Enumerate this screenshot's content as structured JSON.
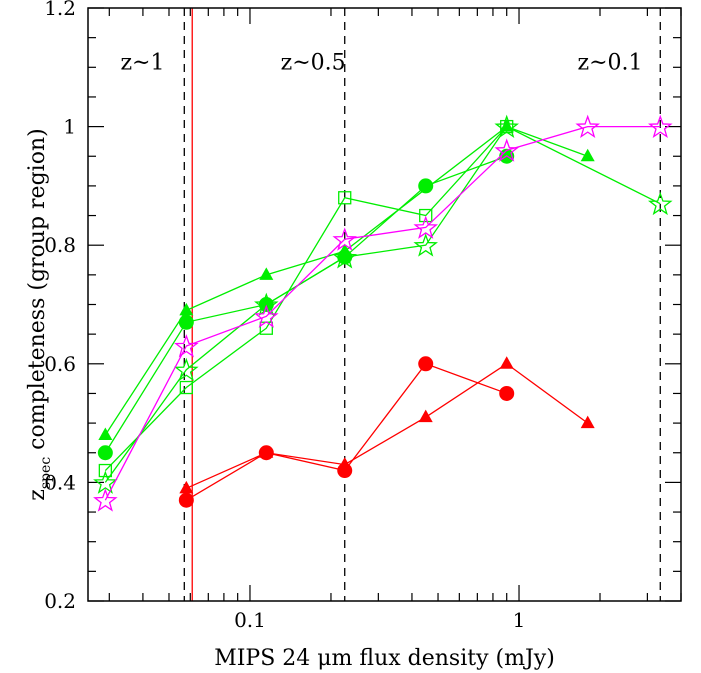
{
  "chart_data": {
    "type": "line",
    "xlabel": "MIPS 24 μm flux density (mJy)",
    "ylabel_main": "z",
    "ylabel_sub": "spec",
    "ylabel_rest": " completeness (group region)",
    "xscale": "log",
    "xlim": [
      0.025,
      4.0
    ],
    "ylim": [
      0.2,
      1.2
    ],
    "x_ticks": [
      {
        "value": 0.1,
        "label": "0.1"
      },
      {
        "value": 1,
        "label": "1"
      }
    ],
    "y_ticks": [
      {
        "value": 0.2,
        "label": "0.2"
      },
      {
        "value": 0.4,
        "label": "0.4"
      },
      {
        "value": 0.6,
        "label": "0.6"
      },
      {
        "value": 0.8,
        "label": "0.8"
      },
      {
        "value": 1.0,
        "label": "1"
      },
      {
        "value": 1.2,
        "label": "1.2"
      }
    ],
    "vertical_lines": [
      {
        "x": 0.057,
        "style": "dashed",
        "color": "#000000"
      },
      {
        "x": 0.061,
        "style": "solid",
        "color": "#ff0000"
      },
      {
        "x": 0.225,
        "style": "dashed",
        "color": "#000000"
      },
      {
        "x": 3.35,
        "style": "dashed",
        "color": "#000000"
      }
    ],
    "annotations": [
      {
        "text": "z~1",
        "x": 0.033,
        "y": 1.11
      },
      {
        "text": "z~0.5",
        "x": 0.13,
        "y": 1.11
      },
      {
        "text": "z~0.1",
        "x": 1.65,
        "y": 1.11
      }
    ],
    "series": [
      {
        "marker": "filled-triangle",
        "color": "#00ee00",
        "x": [
          0.029,
          0.058,
          0.115,
          0.225,
          0.9,
          1.8
        ],
        "y": [
          0.48,
          0.69,
          0.75,
          0.79,
          1.0,
          0.95
        ]
      },
      {
        "marker": "filled-circle",
        "color": "#00ee00",
        "x": [
          0.029,
          0.058,
          0.115,
          0.225,
          0.45,
          0.9
        ],
        "y": [
          0.45,
          0.67,
          0.7,
          0.78,
          0.9,
          0.95
        ]
      },
      {
        "marker": "open-square",
        "color": "#00ee00",
        "x": [
          0.029,
          0.058,
          0.115,
          0.225,
          0.45,
          0.9
        ],
        "y": [
          0.42,
          0.56,
          0.66,
          0.88,
          0.85,
          1.0
        ]
      },
      {
        "marker": "open-star",
        "color": "#00ee00",
        "x": [
          0.029,
          0.058,
          0.115,
          0.225,
          0.45,
          0.9,
          3.35
        ],
        "y": [
          0.4,
          0.59,
          0.7,
          0.78,
          0.8,
          1.0,
          0.87
        ]
      },
      {
        "marker": "open-star",
        "color": "#ff00ff",
        "x": [
          0.029,
          0.058,
          0.115,
          0.225,
          0.45,
          0.9,
          1.8,
          3.35
        ],
        "y": [
          0.37,
          0.63,
          0.68,
          0.81,
          0.83,
          0.96,
          1.0,
          1.0
        ]
      },
      {
        "marker": "filled-triangle",
        "color": "#ff0000",
        "x": [
          0.058,
          0.115,
          0.225,
          0.45,
          0.9,
          1.8
        ],
        "y": [
          0.39,
          0.45,
          0.43,
          0.51,
          0.6,
          0.5
        ]
      },
      {
        "marker": "filled-circle",
        "color": "#ff0000",
        "x": [
          0.058,
          0.115,
          0.225,
          0.45,
          0.9
        ],
        "y": [
          0.37,
          0.45,
          0.42,
          0.6,
          0.55
        ]
      }
    ]
  }
}
